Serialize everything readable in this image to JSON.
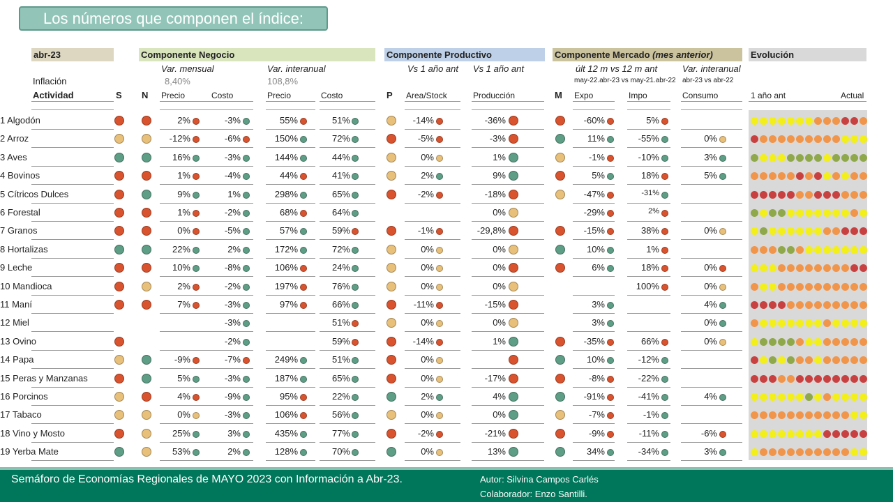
{
  "title": "Los números que componen el índice:",
  "period": "abr-23",
  "inflation_label": "Inflación",
  "activity_label": "Actividad",
  "s_label": "S",
  "n_label": "N",
  "p_label": "P",
  "m_label": "M",
  "negocio": {
    "title": "Componente Negocio",
    "sub_mensual": "Var. mensual",
    "sub_interanual": "Var. interanual",
    "infl_mensual": "8,40%",
    "infl_interanual": "108,8%",
    "precio": "Precio",
    "costo": "Costo"
  },
  "productivo": {
    "title": "Componente Productivo",
    "sub1": "Vs 1 año ant",
    "sub2": "Vs 1 año ant",
    "area": "Area/Stock",
    "prod": "Producción"
  },
  "mercado": {
    "title": "Componente Mercado",
    "title_note": "(mes anterior)",
    "sub1": "últ 12 m vs 12 m ant",
    "sub2": "Var. interanual",
    "range1": "may-22.abr-23 vs may-21.abr-22",
    "range2": "abr-23 vs abr-22",
    "expo": "Expo",
    "impo": "Impo",
    "consumo": "Consumo"
  },
  "evolucion": {
    "title": "Evolución",
    "left": "1 año ant",
    "right": "Actual"
  },
  "colors": {
    "r": "#d9532e",
    "o": "#e8c07a",
    "g": "#5e9e86",
    "Y": "#f2ef1a",
    "O": "#f0954a",
    "R": "#c94040",
    "G": "#8fa84a"
  },
  "rows": [
    {
      "name": "1 Algodón",
      "s": "r",
      "n": "r",
      "pm": [
        "2%",
        "r"
      ],
      "cm": [
        "-3%",
        "g"
      ],
      "pi": [
        "55%",
        "r"
      ],
      "ci": [
        "51%",
        "g"
      ],
      "p": "o",
      "area": [
        "-14%",
        "r"
      ],
      "prod": [
        "-36%",
        "r"
      ],
      "m": "r",
      "expo": [
        "-60%",
        "r"
      ],
      "impo": [
        "5%",
        "r"
      ],
      "cons": null,
      "evo": "YYYYYYYOOORRO"
    },
    {
      "name": "2 Arroz",
      "s": "o",
      "n": "o",
      "pm": [
        "-12%",
        "r"
      ],
      "cm": [
        "-6%",
        "r"
      ],
      "pi": [
        "150%",
        "g"
      ],
      "ci": [
        "72%",
        "g"
      ],
      "p": "r",
      "area": [
        "-5%",
        "r"
      ],
      "prod": [
        "-3%",
        "r"
      ],
      "m": "g",
      "expo": [
        "11%",
        "g"
      ],
      "impo": [
        "-55%",
        "g"
      ],
      "cons": [
        "0%",
        "o"
      ],
      "evo": "ROOOOOOOOOYYY"
    },
    {
      "name": "3 Aves",
      "s": "g",
      "n": "g",
      "pm": [
        "16%",
        "g"
      ],
      "cm": [
        "-3%",
        "g"
      ],
      "pi": [
        "144%",
        "g"
      ],
      "ci": [
        "44%",
        "g"
      ],
      "p": "o",
      "area": [
        "0%",
        "o"
      ],
      "prod": [
        "1%",
        "g"
      ],
      "m": "o",
      "expo": [
        "-1%",
        "r"
      ],
      "impo": [
        "-10%",
        "g"
      ],
      "cons": [
        "3%",
        "g"
      ],
      "evo": "GYYYGGGGYGGGG"
    },
    {
      "name": "4 Bovinos",
      "s": "r",
      "n": "r",
      "pm": [
        "1%",
        "r"
      ],
      "cm": [
        "-4%",
        "g"
      ],
      "pi": [
        "44%",
        "r"
      ],
      "ci": [
        "41%",
        "g"
      ],
      "p": "o",
      "area": [
        "2%",
        "g"
      ],
      "prod": [
        "9%",
        "g"
      ],
      "m": "r",
      "expo": [
        "5%",
        "g"
      ],
      "impo": [
        "18%",
        "r"
      ],
      "cons": [
        "5%",
        "g"
      ],
      "evo": "OOOOORORYOYOO"
    },
    {
      "name": "5 Cítricos Dulces",
      "s": "r",
      "n": "g",
      "pm": [
        "9%",
        "g"
      ],
      "cm": [
        "1%",
        "g"
      ],
      "pi": [
        "298%",
        "g"
      ],
      "ci": [
        "65%",
        "g"
      ],
      "p": "r",
      "area": [
        "-2%",
        "r"
      ],
      "prod": [
        "-18%",
        "r"
      ],
      "m": "o",
      "expo": [
        "-47%",
        "r"
      ],
      "impo": [
        "-31%",
        "g"
      ],
      "cons": null,
      "evo": "RRRRROORRROOO"
    },
    {
      "name": "6 Forestal",
      "s": "r",
      "n": "r",
      "pm": [
        "1%",
        "r"
      ],
      "cm": [
        "-2%",
        "g"
      ],
      "pi": [
        "68%",
        "r"
      ],
      "ci": [
        "64%",
        "g"
      ],
      "p": null,
      "area": null,
      "prod": [
        "0%",
        "o"
      ],
      "m": null,
      "expo": [
        "-29%",
        "r"
      ],
      "impo": [
        "2%",
        "r"
      ],
      "cons": null,
      "evo": "GYGGYYYYYYYOY"
    },
    {
      "name": "7 Granos",
      "s": "r",
      "n": "r",
      "pm": [
        "0%",
        "r"
      ],
      "cm": [
        "-5%",
        "g"
      ],
      "pi": [
        "57%",
        "g"
      ],
      "ci": [
        "59%",
        "r"
      ],
      "p": "r",
      "area": [
        "-1%",
        "r"
      ],
      "prod": [
        "-29,8%",
        "r"
      ],
      "m": "r",
      "expo": [
        "-15%",
        "r"
      ],
      "impo": [
        "38%",
        "r"
      ],
      "cons": [
        "0%",
        "o"
      ],
      "evo": "YGYYYYYYOORRR"
    },
    {
      "name": "8 Hortalizas",
      "s": "g",
      "n": "g",
      "pm": [
        "22%",
        "g"
      ],
      "cm": [
        "2%",
        "g"
      ],
      "pi": [
        "172%",
        "g"
      ],
      "ci": [
        "72%",
        "g"
      ],
      "p": "o",
      "area": [
        "0%",
        "o"
      ],
      "prod": [
        "0%",
        "o"
      ],
      "m": "g",
      "expo": [
        "10%",
        "g"
      ],
      "impo": [
        "1%",
        "r"
      ],
      "cons": null,
      "evo": "OOOGGOYYYYYYY"
    },
    {
      "name": "9 Leche",
      "s": "r",
      "n": "r",
      "pm": [
        "10%",
        "g"
      ],
      "cm": [
        "-8%",
        "g"
      ],
      "pi": [
        "106%",
        "r"
      ],
      "ci": [
        "24%",
        "g"
      ],
      "p": "o",
      "area": [
        "0%",
        "o"
      ],
      "prod": [
        "0%",
        "r"
      ],
      "m": "r",
      "expo": [
        "6%",
        "g"
      ],
      "impo": [
        "18%",
        "r"
      ],
      "cons": [
        "0%",
        "r"
      ],
      "evo": "YYYOOOOOOOORR"
    },
    {
      "name": "10 Mandioca",
      "s": "r",
      "n": "o",
      "pm": [
        "2%",
        "r"
      ],
      "cm": [
        "-2%",
        "g"
      ],
      "pi": [
        "197%",
        "r"
      ],
      "ci": [
        "76%",
        "g"
      ],
      "p": "o",
      "area": [
        "0%",
        "o"
      ],
      "prod": [
        "0%",
        "o"
      ],
      "m": null,
      "expo": null,
      "impo": [
        "100%",
        "r"
      ],
      "cons": [
        "0%",
        "o"
      ],
      "evo": "OYYOOOOOOOOOO"
    },
    {
      "name": "11 Maní",
      "s": "r",
      "n": "r",
      "pm": [
        "7%",
        "r"
      ],
      "cm": [
        "-3%",
        "g"
      ],
      "pi": [
        "97%",
        "r"
      ],
      "ci": [
        "66%",
        "g"
      ],
      "p": "r",
      "area": [
        "-11%",
        "r"
      ],
      "prod": [
        "-15%",
        "r"
      ],
      "m": null,
      "expo": [
        "3%",
        "g"
      ],
      "impo": null,
      "cons": [
        "4%",
        "g"
      ],
      "evo": "RRRROOOOOOOOO"
    },
    {
      "name": "12 Miel",
      "s": null,
      "n": null,
      "pm": null,
      "cm": [
        "-3%",
        "g"
      ],
      "pi": null,
      "ci": [
        "51%",
        "r"
      ],
      "p": "o",
      "area": [
        "0%",
        "o"
      ],
      "prod": [
        "0%",
        "o"
      ],
      "m": null,
      "expo": [
        "3%",
        "g"
      ],
      "impo": null,
      "cons": [
        "0%",
        "g"
      ],
      "evo": "OYYYYYYYOYYYY"
    },
    {
      "name": "13 Ovino",
      "s": "r",
      "n": null,
      "pm": null,
      "cm": [
        "-2%",
        "g"
      ],
      "pi": null,
      "ci": [
        "59%",
        "r"
      ],
      "p": "r",
      "area": [
        "-14%",
        "r"
      ],
      "prod": [
        "1%",
        "g"
      ],
      "m": "r",
      "expo": [
        "-35%",
        "r"
      ],
      "impo": [
        "66%",
        "r"
      ],
      "cons": [
        "0%",
        "o"
      ],
      "evo": "YGGGGOYYOOOOO"
    },
    {
      "name": "14 Papa",
      "s": "o",
      "n": "g",
      "pm": [
        "-9%",
        "r"
      ],
      "cm": [
        "-7%",
        "r"
      ],
      "pi": [
        "249%",
        "g"
      ],
      "ci": [
        "51%",
        "g"
      ],
      "p": "r",
      "area": [
        "0%",
        "o"
      ],
      "prod": [
        "",
        "r"
      ],
      "m": "g",
      "expo": [
        "10%",
        "g"
      ],
      "impo": [
        "-12%",
        "g"
      ],
      "cons": null,
      "evo": "RYGYGOOYOOOOO"
    },
    {
      "name": "15 Peras y Manzanas",
      "s": "r",
      "n": "g",
      "pm": [
        "5%",
        "g"
      ],
      "cm": [
        "-3%",
        "g"
      ],
      "pi": [
        "187%",
        "g"
      ],
      "ci": [
        "65%",
        "g"
      ],
      "p": "r",
      "area": [
        "0%",
        "o"
      ],
      "prod": [
        "-17%",
        "r"
      ],
      "m": "r",
      "expo": [
        "-8%",
        "r"
      ],
      "impo": [
        "-22%",
        "g"
      ],
      "cons": null,
      "evo": "RRROORRRRRRRR"
    },
    {
      "name": "16 Porcinos",
      "s": "o",
      "n": "r",
      "pm": [
        "4%",
        "r"
      ],
      "cm": [
        "-9%",
        "g"
      ],
      "pi": [
        "95%",
        "r"
      ],
      "ci": [
        "22%",
        "g"
      ],
      "p": "g",
      "area": [
        "2%",
        "g"
      ],
      "prod": [
        "4%",
        "g"
      ],
      "m": "g",
      "expo": [
        "-91%",
        "r"
      ],
      "impo": [
        "-41%",
        "g"
      ],
      "cons": [
        "4%",
        "g"
      ],
      "evo": "YYYYYYGYOYYYY"
    },
    {
      "name": "17 Tabaco",
      "s": "o",
      "n": "o",
      "pm": [
        "0%",
        "o"
      ],
      "cm": [
        "-3%",
        "g"
      ],
      "pi": [
        "106%",
        "r"
      ],
      "ci": [
        "56%",
        "g"
      ],
      "p": "o",
      "area": [
        "0%",
        "o"
      ],
      "prod": [
        "0%",
        "g"
      ],
      "m": "o",
      "expo": [
        "-7%",
        "r"
      ],
      "impo": [
        "-1%",
        "g"
      ],
      "cons": null,
      "evo": "OOOOOOOOOOOYY"
    },
    {
      "name": "18 Vino y Mosto",
      "s": "r",
      "n": "o",
      "pm": [
        "25%",
        "g"
      ],
      "cm": [
        "3%",
        "g"
      ],
      "pi": [
        "435%",
        "g"
      ],
      "ci": [
        "77%",
        "g"
      ],
      "p": "r",
      "area": [
        "-2%",
        "r"
      ],
      "prod": [
        "-21%",
        "r"
      ],
      "m": "r",
      "expo": [
        "-9%",
        "r"
      ],
      "impo": [
        "-11%",
        "g"
      ],
      "cons": [
        "-6%",
        "r"
      ],
      "evo": "YYYYYYYYRRRRR"
    },
    {
      "name": "19 Yerba Mate",
      "s": "g",
      "n": "o",
      "pm": [
        "53%",
        "g"
      ],
      "cm": [
        "2%",
        "g"
      ],
      "pi": [
        "128%",
        "g"
      ],
      "ci": [
        "70%",
        "g"
      ],
      "p": "g",
      "area": [
        "0%",
        "o"
      ],
      "prod": [
        "13%",
        "g"
      ],
      "m": "g",
      "expo": [
        "34%",
        "g"
      ],
      "impo": [
        "-34%",
        "g"
      ],
      "cons": [
        "3%",
        "g"
      ],
      "evo": "YOOOOOOOOOOYY"
    }
  ],
  "footer": {
    "left": "Semáforo de Economías Regionales de MAYO 2023 con Información a Abr-23.",
    "author": "Autor: Silvina Campos Carlés",
    "collab": "Colaborador: Enzo Santilli."
  }
}
